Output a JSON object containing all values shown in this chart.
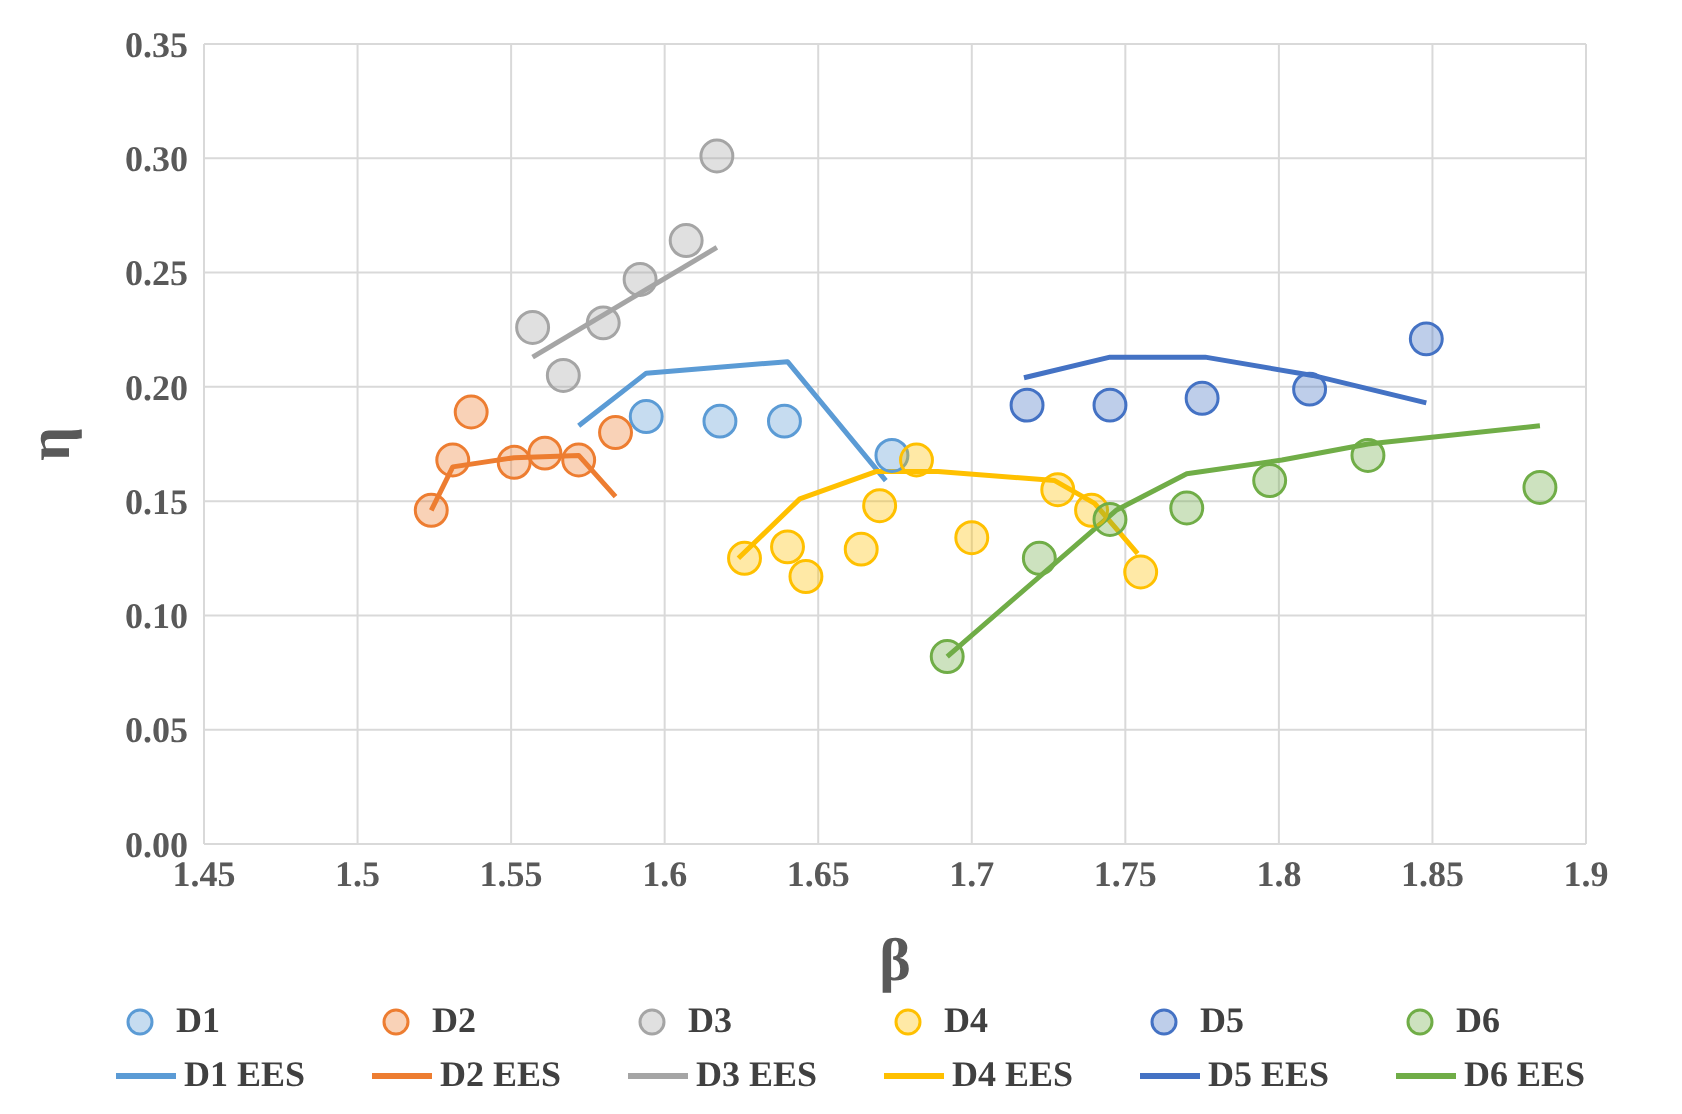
{
  "chart_data": {
    "type": "scatter",
    "xlabel": "β",
    "ylabel": "η",
    "xlim": [
      1.45,
      1.9
    ],
    "xticks": [
      1.45,
      1.5,
      1.55,
      1.6,
      1.65,
      1.7,
      1.75,
      1.8,
      1.85,
      1.9
    ],
    "ylim": [
      0,
      0.35
    ],
    "yticks": [
      {
        "value": 0,
        "label": "0.00"
      },
      {
        "value": 0.05,
        "label": "0.05"
      },
      {
        "value": 0.1,
        "label": "0.10"
      },
      {
        "value": 0.15,
        "label": "0.15"
      },
      {
        "value": 0.2,
        "label": "0.20"
      },
      {
        "value": 0.25,
        "label": "0.25"
      },
      {
        "value": 0.3,
        "label": "0.30"
      },
      {
        "value": 0.35,
        "label": "0.35"
      }
    ],
    "grid": true,
    "legend": "bottom",
    "series": [
      {
        "name": "D1",
        "marker": "circle",
        "color": "#5b9bd5",
        "x": [
          1.594,
          1.618,
          1.639,
          1.674
        ],
        "values": [
          0.187,
          0.185,
          0.185,
          0.17
        ]
      },
      {
        "name": "D2",
        "marker": "circle",
        "color": "#ed7d31",
        "x": [
          1.524,
          1.531,
          1.537,
          1.551,
          1.561,
          1.572,
          1.584
        ],
        "values": [
          0.146,
          0.168,
          0.189,
          0.167,
          0.171,
          0.168,
          0.18
        ]
      },
      {
        "name": "D3",
        "marker": "circle",
        "color": "#a5a5a5",
        "x": [
          1.557,
          1.567,
          1.58,
          1.592,
          1.607,
          1.617
        ],
        "values": [
          0.226,
          0.205,
          0.228,
          0.247,
          0.264,
          0.301
        ]
      },
      {
        "name": "D4",
        "marker": "circle",
        "color": "#ffc000",
        "x": [
          1.626,
          1.64,
          1.646,
          1.664,
          1.67,
          1.682,
          1.7,
          1.728,
          1.739,
          1.755
        ],
        "values": [
          0.125,
          0.13,
          0.117,
          0.129,
          0.148,
          0.168,
          0.134,
          0.155,
          0.146,
          0.119
        ]
      },
      {
        "name": "D5",
        "marker": "circle",
        "color": "#4472c4",
        "x": [
          1.718,
          1.745,
          1.775,
          1.81,
          1.848
        ],
        "values": [
          0.192,
          0.192,
          0.195,
          0.199,
          0.221
        ]
      },
      {
        "name": "D6",
        "marker": "circle",
        "color": "#70ad47",
        "x": [
          1.692,
          1.722,
          1.745,
          1.77,
          1.797,
          1.829,
          1.885
        ],
        "values": [
          0.082,
          0.125,
          0.142,
          0.147,
          0.159,
          0.17,
          0.156
        ]
      },
      {
        "name": "D1 EES",
        "type": "line",
        "marker": "none",
        "color": "#5b9bd5",
        "x": [
          1.572,
          1.594,
          1.64,
          1.672
        ],
        "values": [
          0.183,
          0.206,
          0.211,
          0.159
        ]
      },
      {
        "name": "D2 EES",
        "type": "line",
        "marker": "none",
        "color": "#ed7d31",
        "x": [
          1.524,
          1.531,
          1.551,
          1.572,
          1.584
        ],
        "values": [
          0.146,
          0.165,
          0.169,
          0.17,
          0.152
        ]
      },
      {
        "name": "D3 EES",
        "type": "line",
        "marker": "none",
        "color": "#a5a5a5",
        "x": [
          1.557,
          1.617
        ],
        "values": [
          0.213,
          0.261
        ]
      },
      {
        "name": "D4 EES",
        "type": "line",
        "marker": "none",
        "color": "#ffc000",
        "x": [
          1.624,
          1.644,
          1.669,
          1.689,
          1.727,
          1.74,
          1.754
        ],
        "values": [
          0.125,
          0.151,
          0.163,
          0.163,
          0.159,
          0.149,
          0.127
        ]
      },
      {
        "name": "D5 EES",
        "type": "line",
        "marker": "none",
        "color": "#4472c4",
        "x": [
          1.717,
          1.745,
          1.776,
          1.811,
          1.848
        ],
        "values": [
          0.204,
          0.213,
          0.213,
          0.205,
          0.193
        ]
      },
      {
        "name": "D6 EES",
        "type": "line",
        "marker": "none",
        "color": "#70ad47",
        "x": [
          1.692,
          1.747,
          1.77,
          1.801,
          1.829,
          1.885
        ],
        "values": [
          0.082,
          0.146,
          0.162,
          0.168,
          0.175,
          0.183
        ]
      }
    ]
  }
}
